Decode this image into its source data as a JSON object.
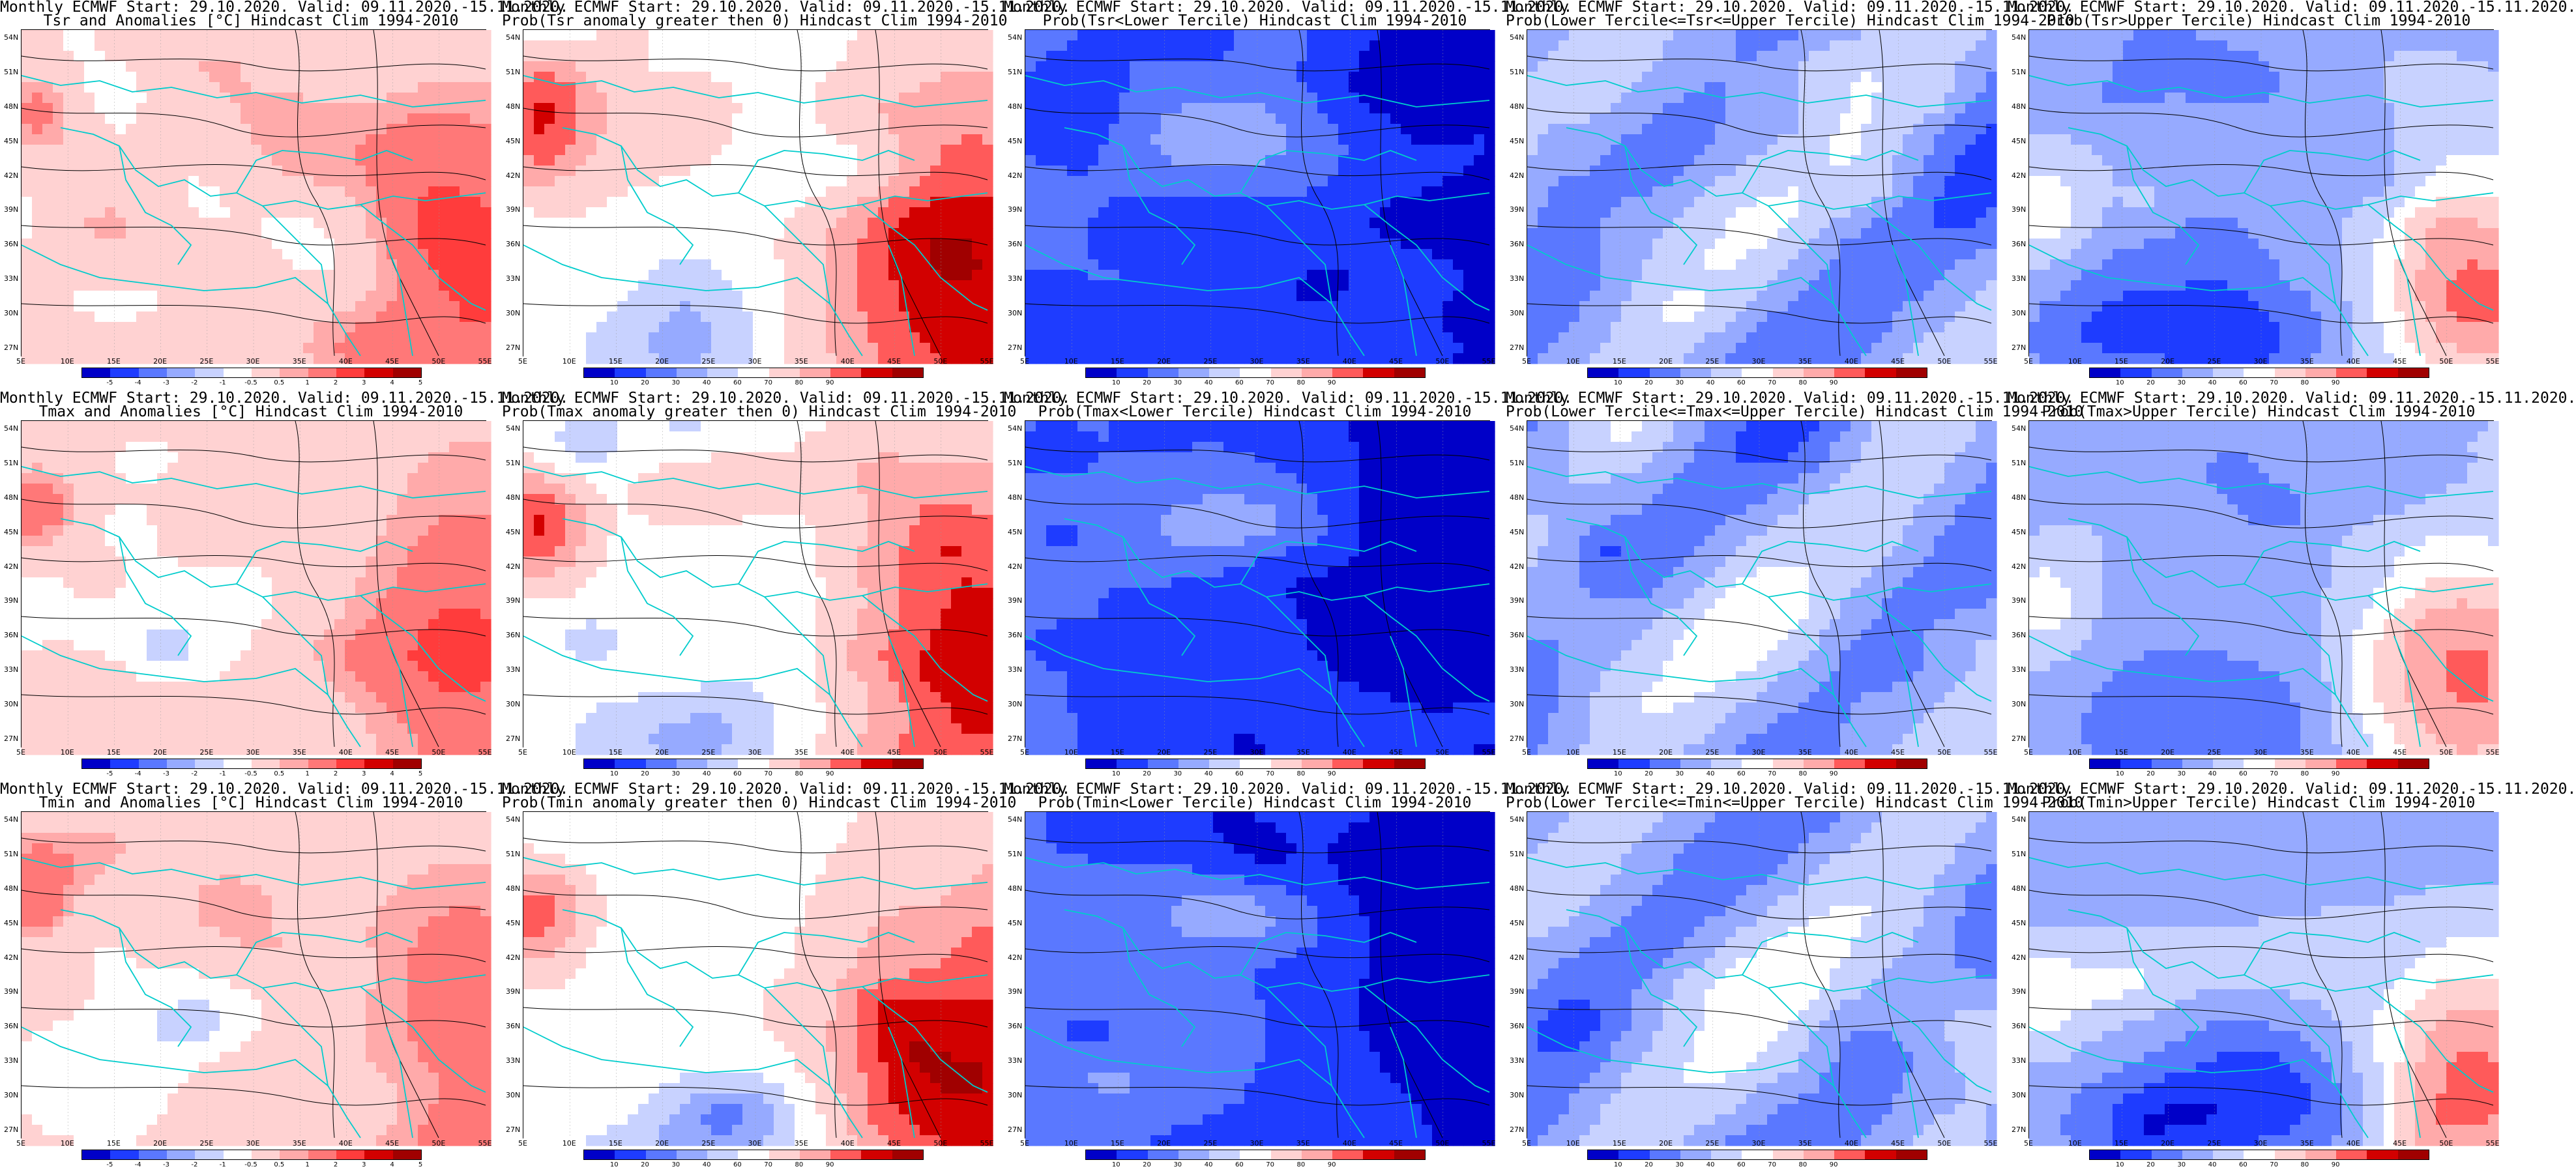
{
  "colors": {
    "anomaly": [
      "#0000c8",
      "#1e3cff",
      "#5a78ff",
      "#96aaff",
      "#c8d2ff",
      "#ffffff",
      "#ffd2d2",
      "#ffaaaa",
      "#ff7878",
      "#ff3c3c",
      "#d20000",
      "#a00000"
    ],
    "prob": [
      "#0000c8",
      "#1e3cff",
      "#5a78ff",
      "#96aaff",
      "#c8d2ff",
      "#ffffff",
      "#ffd2d2",
      "#ffaaaa",
      "#ff5a5a",
      "#d20000",
      "#a00000"
    ],
    "coast": "#00cccc",
    "contour": "#000000"
  },
  "axes": {
    "lat_labels": [
      "54N",
      "51N",
      "48N",
      "45N",
      "42N",
      "39N",
      "36N",
      "33N",
      "30N",
      "27N"
    ],
    "lon_labels": [
      "5E",
      "10E",
      "15E",
      "20E",
      "25E",
      "30E",
      "35E",
      "40E",
      "45E",
      "50E",
      "55E"
    ]
  },
  "colorbars": {
    "anomaly_ticks": [
      "-5",
      "-4",
      "-3",
      "-2",
      "-1",
      "-0.5",
      "0.5",
      "1",
      "2",
      "3",
      "4",
      "5"
    ],
    "prob_ticks": [
      "10",
      "20",
      "30",
      "40",
      "60",
      "70",
      "80",
      "90"
    ]
  },
  "panels": [
    {
      "line1": "Monthly ECMWF Start: 29.10.2020. Valid: 09.11.2020.-15.11.2020.",
      "line2": "Tsr and Anomalies [°C] Hindcast Clim 1994-2010",
      "scale": "anomaly",
      "field": "anom"
    },
    {
      "line1": "Monthly ECMWF Start: 29.10.2020. Valid: 09.11.2020.-15.11.2020.",
      "line2": "Prob(Tsr anomaly greater then 0) Hindcast Clim 1994-2010",
      "scale": "prob",
      "field": "warm"
    },
    {
      "line1": "Monthly ECMWF Start: 29.10.2020. Valid: 09.11.2020.-15.11.2020.",
      "line2": "Prob(Tsr<Lower Tercile) Hindcast Clim 1994-2010",
      "scale": "prob",
      "field": "cold"
    },
    {
      "line1": "Monthly ECMWF Start: 29.10.2020. Valid: 09.11.2020.-15.11.2020.",
      "line2": "Prob(Lower Tercile<=Tsr<=Upper Tercile) Hindcast Clim 1994-2010",
      "scale": "prob",
      "field": "mid"
    },
    {
      "line1": "Monthly ECMWF Start: 29.10.2020. Valid: 09.11.2020.-15.11.2020.",
      "line2": "Prob(Tsr>Upper Tercile) Hindcast Clim 1994-2010",
      "scale": "prob",
      "field": "upper"
    },
    {
      "line1": "Monthly ECMWF Start: 29.10.2020. Valid: 09.11.2020.-15.11.2020.",
      "line2": "Tmax and Anomalies [°C] Hindcast Clim 1994-2010",
      "scale": "anomaly",
      "field": "anom"
    },
    {
      "line1": "Monthly ECMWF Start: 29.10.2020. Valid: 09.11.2020.-15.11.2020.",
      "line2": "Prob(Tmax anomaly greater then 0) Hindcast Clim 1994-2010",
      "scale": "prob",
      "field": "warm"
    },
    {
      "line1": "Monthly ECMWF Start: 29.10.2020. Valid: 09.11.2020.-15.11.2020.",
      "line2": "Prob(Tmax<Lower Tercile) Hindcast Clim 1994-2010",
      "scale": "prob",
      "field": "cold"
    },
    {
      "line1": "Monthly ECMWF Start: 29.10.2020. Valid: 09.11.2020.-15.11.2020.",
      "line2": "Prob(Lower Tercile<=Tmax<=Upper Tercile) Hindcast Clim 1994-2010",
      "scale": "prob",
      "field": "mid"
    },
    {
      "line1": "Monthly ECMWF Start: 29.10.2020. Valid: 09.11.2020.-15.11.2020.",
      "line2": "Prob(Tmax>Upper Tercile) Hindcast Clim 1994-2010",
      "scale": "prob",
      "field": "upper"
    },
    {
      "line1": "Monthly ECMWF Start: 29.10.2020. Valid: 09.11.2020.-15.11.2020.",
      "line2": "Tmin and Anomalies [°C] Hindcast Clim 1994-2010",
      "scale": "anomaly",
      "field": "anom"
    },
    {
      "line1": "Monthly ECMWF Start: 29.10.2020. Valid: 09.11.2020.-15.11.2020.",
      "line2": "Prob(Tmin anomaly greater then 0) Hindcast Clim 1994-2010",
      "scale": "prob",
      "field": "warm"
    },
    {
      "line1": "Monthly ECMWF Start: 29.10.2020. Valid: 09.11.2020.-15.11.2020.",
      "line2": "Prob(Tmin<Lower Tercile) Hindcast Clim 1994-2010",
      "scale": "prob",
      "field": "cold"
    },
    {
      "line1": "Monthly ECMWF Start: 29.10.2020. Valid: 09.11.2020.-15.11.2020.",
      "line2": "Prob(Lower Tercile<=Tmin<=Upper Tercile) Hindcast Clim 1994-2010",
      "scale": "prob",
      "field": "mid"
    },
    {
      "line1": "Monthly ECMWF Start: 29.10.2020. Valid: 09.11.2020.-15.11.2020.",
      "line2": "Prob(Tmin>Upper Tercile) Hindcast Clim 1994-2010",
      "scale": "prob",
      "field": "upper"
    }
  ]
}
